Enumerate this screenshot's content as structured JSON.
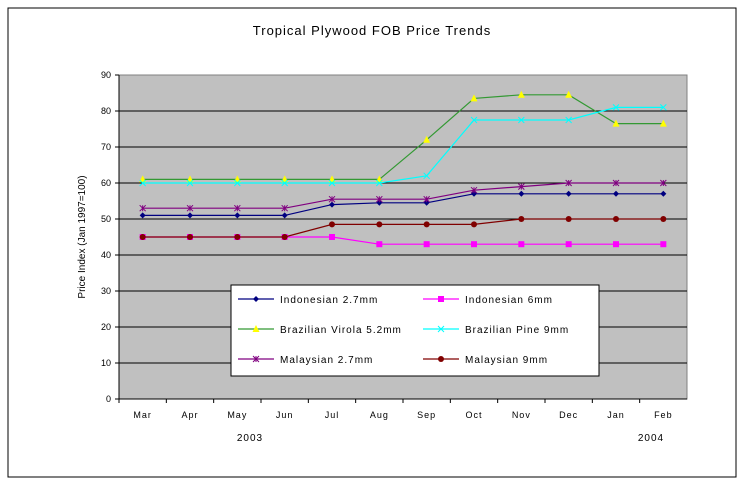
{
  "chart_data": {
    "type": "line",
    "title": "Tropical Plywood FOB Price Trends",
    "xlabel": "",
    "ylabel": "Price Index (Jan 1997=100)",
    "ylim": [
      0,
      90
    ],
    "yticks": [
      0,
      10,
      20,
      30,
      40,
      50,
      60,
      70,
      80,
      90
    ],
    "grid": true,
    "categories": [
      "Mar",
      "Apr",
      "May",
      "Jun",
      "Jul",
      "Aug",
      "Sep",
      "Oct",
      "Nov",
      "Dec",
      "Jan",
      "Feb"
    ],
    "year_labels": [
      "2003",
      "2004"
    ],
    "legend_position": "bottom-center inside plot",
    "series": [
      {
        "name": "Indonesian 2.7mm",
        "color": "#000080",
        "marker": "diamond",
        "values": [
          51,
          51,
          51,
          51,
          54,
          54.5,
          54.5,
          57,
          57,
          57,
          57,
          57
        ]
      },
      {
        "name": "Indonesian 6mm",
        "color": "#FF00FF",
        "marker": "square",
        "values": [
          45,
          45,
          45,
          45,
          45,
          43,
          43,
          43,
          43,
          43,
          43,
          43
        ]
      },
      {
        "name": "Brazilian Virola 5.2mm",
        "color": "#339933",
        "markerColor": "#FFFF00",
        "marker": "triangle",
        "values": [
          61,
          61,
          61,
          61,
          61,
          61,
          72,
          83.5,
          84.5,
          84.5,
          76.5,
          76.5
        ]
      },
      {
        "name": "Brazilian Pine 9mm",
        "color": "#00FFFF",
        "marker": "x",
        "values": [
          60,
          60,
          60,
          60,
          60,
          60,
          62,
          77.5,
          77.5,
          77.5,
          81,
          81
        ]
      },
      {
        "name": "Malaysian 2.7mm",
        "color": "#800080",
        "marker": "star",
        "values": [
          53,
          53,
          53,
          53,
          55.5,
          55.5,
          55.5,
          58,
          59,
          60,
          60,
          60
        ]
      },
      {
        "name": "Malaysian 9mm",
        "color": "#800000",
        "marker": "circle",
        "values": [
          45,
          45,
          45,
          45,
          48.5,
          48.5,
          48.5,
          48.5,
          50,
          50,
          50,
          50
        ]
      }
    ]
  }
}
